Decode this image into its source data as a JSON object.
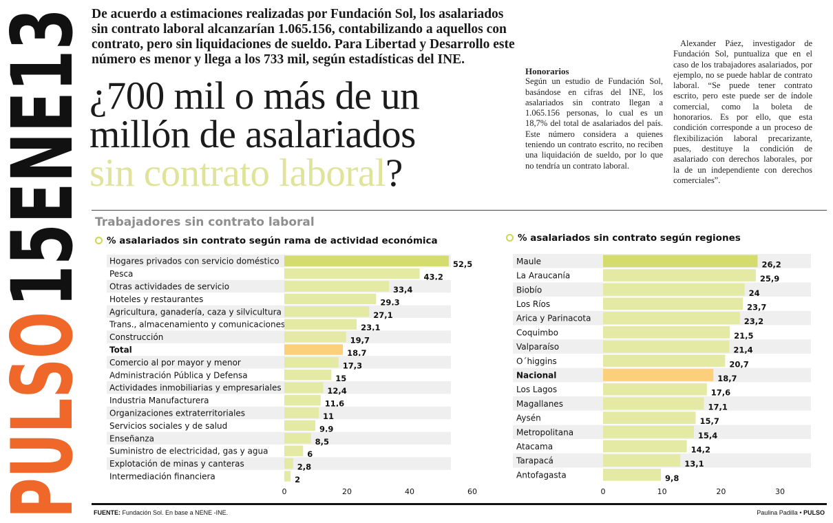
{
  "masthead": {
    "pulso": "PULSO",
    "date": "15ENE13",
    "colors": {
      "pulso": "#f0672a",
      "date": "#111111"
    }
  },
  "article": {
    "intro": "De acuerdo a estimaciones realizadas por Fundación Sol, los asalariados sin contrato laboral alcanzarían 1.065.156, contabilizando a aquellos con contrato, pero sin liquidaciones de sueldo. Para Libertad y Desarrollo este número es menor y llega a los 733 mil, según estadísticas del INE.",
    "headline_dark": "¿700 mil o más de un millón de asalariados",
    "headline_light": "sin contrato laboral",
    "headline_end": "?",
    "col_mid_head": "Honorarios",
    "col_mid_body": "Según un estudio de Fundación Sol, basándose en cifras del INE, los asalariados sin contrato llegan a 1.065.156 personas, lo cual es un 18,7% del total de asalariados del país. Este número considera a quienes teniendo un contrato escrito, no reciben una liquidación de sueldo, por lo que no tendría un contrato laboral.",
    "col_right_body": "Alexander Páez, investigador de Fundación Sol, puntualiza que en el caso de los trabajadores asalariados, por ejemplo, no se puede hablar de contrato laboral. “Se puede tener contrato escrito, pero este puede ser de índole comercial, como la boleta de honorarios. Es por ello, que esta condición corresponde a un proceso de flexibilización laboral precarizante, pues, destituye la condición de asalariado con derechos laborales, por la de un independiente con derechos comerciales”."
  },
  "graphic": {
    "title": "Trabajadores sin contrato laboral",
    "source_label": "FUENTE:",
    "source_text": "Fundación Sol. En base a NENE -INE.",
    "credit_author": "Paulina Padilla",
    "credit_sep": "•",
    "credit_paper": "PULSO"
  },
  "colors": {
    "bar": "#e4e9a4",
    "bar_top": "#d3dc6d",
    "bar_highlight": "#fcd07a",
    "stripe": "#efefef",
    "bullet": "#cdd655"
  },
  "chart_data": [
    {
      "type": "bar",
      "orientation": "horizontal",
      "title": "% asalariados sin contrato según rama de actividad económica",
      "categories": [
        "Hogares privados con servicio doméstico",
        "Pesca",
        "Otras actividades de servicio",
        "Hoteles y restaurantes",
        "Agricultura, ganadería, caza y silvicultura",
        "Trans., almacenamiento y comunicaciones",
        "Construcción",
        "Total",
        "Comercio al por mayor y menor",
        "Administración Pública y Defensa",
        "Actividades inmobiliarias y empresariales",
        "Industria Manufacturera",
        "Organizaciones extraterritoriales",
        "Servicios sociales y de salud",
        "Enseñanza",
        "Suministro de electricidad, gas y agua",
        "Explotación de minas y canteras",
        "Intermediación financiera"
      ],
      "values": [
        52.5,
        43.2,
        33.4,
        29.3,
        27.1,
        23.1,
        19.7,
        18.7,
        17.3,
        15,
        12.4,
        11.6,
        11,
        9.9,
        8.5,
        6,
        2.8,
        2
      ],
      "value_labels": [
        "52,5",
        "43,2",
        "33,4",
        "29,3",
        "27,1",
        "23,1",
        "19,7",
        "18,7",
        "17,3",
        "15",
        "12,4",
        "11,6",
        "11",
        "9,9",
        "8,5",
        "6",
        "2,8",
        "2"
      ],
      "highlight": "Total",
      "xlim": [
        0,
        60
      ],
      "xticks": [
        0,
        20,
        40,
        60
      ],
      "grid": false
    },
    {
      "type": "bar",
      "orientation": "horizontal",
      "title": "% asalariados sin contrato según regiones",
      "categories": [
        "Maule",
        "La Araucanía",
        "Biobío",
        "Los Ríos",
        "Arica y Parinacota",
        "Coquimbo",
        "Valparaíso",
        "O´higgins",
        "Nacional",
        "Los Lagos",
        "Magallanes",
        "Aysén",
        "Metropolitana",
        "Atacama",
        "Tarapacá",
        "Antofagasta"
      ],
      "values": [
        26.2,
        25.9,
        24,
        23.7,
        23.2,
        21.5,
        21.4,
        20.7,
        18.7,
        17.6,
        17.1,
        15.7,
        15.4,
        14.2,
        13.1,
        9.8
      ],
      "value_labels": [
        "26,2",
        "25,9",
        "24",
        "23,7",
        "23,2",
        "21,5",
        "21,4",
        "20,7",
        "18,7",
        "17,6",
        "17,1",
        "15,7",
        "15,4",
        "14,2",
        "13,1",
        "9,8"
      ],
      "highlight": "Nacional",
      "xlim": [
        0,
        30
      ],
      "xticks": [
        0,
        10,
        20,
        30
      ],
      "grid": false
    }
  ]
}
